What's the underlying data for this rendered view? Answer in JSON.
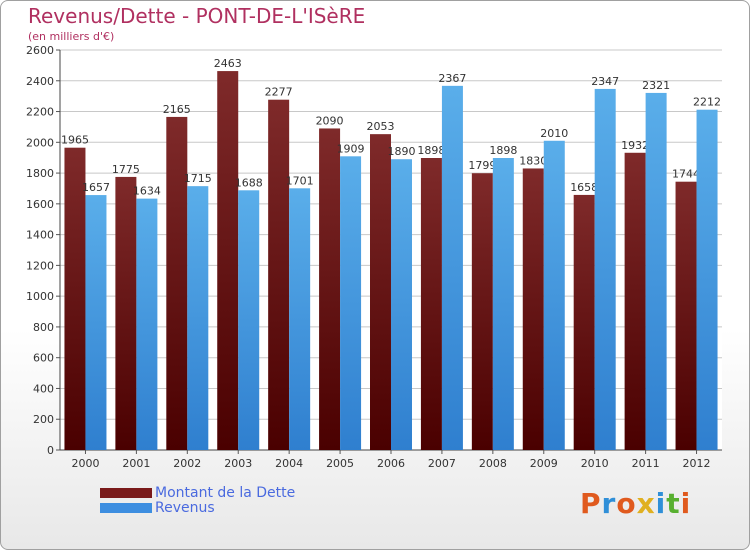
{
  "title": "Revenus/Dette - PONT-DE-L'ISèRE",
  "subtitle": "(en milliers d'€)",
  "logo": {
    "text": "Proxiti",
    "colors": [
      "#e05a1e",
      "#2f8fd8",
      "#e05a1e",
      "#e0b020",
      "#2f8fd8",
      "#58b030",
      "#e05a1e"
    ]
  },
  "colors": {
    "dette": "#7a1a1a",
    "revenus": "#3d8ee0",
    "title": "#b03060",
    "legend_text": "#4a6adf"
  },
  "chart_data": {
    "type": "bar",
    "title": "Revenus/Dette - PONT-DE-L'ISèRE",
    "ylabel": "(en milliers d'€)",
    "xlabel": "",
    "categories": [
      "2000",
      "2001",
      "2002",
      "2003",
      "2004",
      "2005",
      "2006",
      "2007",
      "2008",
      "2009",
      "2010",
      "2011",
      "2012"
    ],
    "series": [
      {
        "name": "Montant de la Dette",
        "values": [
          1965,
          1775,
          2165,
          2463,
          2277,
          2090,
          2053,
          1898,
          1799,
          1830,
          1658,
          1932,
          1744
        ]
      },
      {
        "name": "Revenus",
        "values": [
          1657,
          1634,
          1715,
          1688,
          1701,
          1909,
          1890,
          2367,
          1898,
          2010,
          2347,
          2321,
          2212
        ]
      }
    ],
    "ylim": [
      0,
      2600
    ],
    "yticks": [
      0,
      200,
      400,
      600,
      800,
      1000,
      1200,
      1400,
      1600,
      1800,
      2000,
      2200,
      2400,
      2600
    ],
    "grid": true,
    "legend": "bottom-left"
  }
}
